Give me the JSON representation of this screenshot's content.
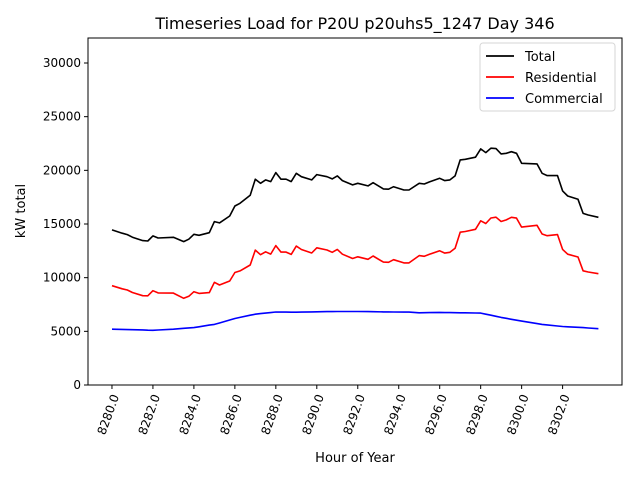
{
  "chart_data": {
    "type": "line",
    "title": "Timeseries Load for P20U p20uhs5_1247  Day 346",
    "xlabel": "Hour of Year",
    "ylabel": "kW total",
    "xlim": [
      8278.83,
      8304.9
    ],
    "ylim": [
      0,
      32330
    ],
    "xticks": [
      8280,
      8282,
      8284,
      8286,
      8288,
      8290,
      8292,
      8294,
      8296,
      8298,
      8300,
      8302
    ],
    "xtick_labels": [
      "8280.0",
      "8282.0",
      "8284.0",
      "8286.0",
      "8288.0",
      "8290.0",
      "8292.0",
      "8294.0",
      "8296.0",
      "8298.0",
      "8300.0",
      "8302.0"
    ],
    "yticks": [
      0,
      5000,
      10000,
      15000,
      20000,
      25000,
      30000
    ],
    "ytick_labels": [
      "0",
      "5000",
      "10000",
      "15000",
      "20000",
      "25000",
      "30000"
    ],
    "grid": false,
    "legend_position": "top-right",
    "x": [
      8280,
      8280.5,
      8280.75,
      8281,
      8281.5,
      8281.75,
      8282,
      8282.25,
      8283,
      8283.5,
      8283.75,
      8284,
      8284.25,
      8284.75,
      8285,
      8285.25,
      8285.75,
      8286,
      8286.25,
      8286.75,
      8287,
      8287.25,
      8287.5,
      8287.75,
      8288,
      8288.25,
      8288.5,
      8288.75,
      8289,
      8289.25,
      8289.75,
      8290,
      8290.5,
      8290.75,
      8291,
      8291.25,
      8291.75,
      8292,
      8292.5,
      8292.75,
      8293.25,
      8293.5,
      8293.75,
      8294.25,
      8294.5,
      8295,
      8295.25,
      8295.5,
      8296,
      8296.25,
      8296.5,
      8296.75,
      8297,
      8297.25,
      8297.75,
      8298,
      8298.25,
      8298.5,
      8298.75,
      8299,
      8299.25,
      8299.5,
      8299.75,
      8300,
      8300.75,
      8301,
      8301.25,
      8301.75,
      8302,
      8302.25,
      8302.75,
      8303,
      8303.25,
      8303.75
    ],
    "series": [
      {
        "name": "Total",
        "color": "#000000",
        "values": [
          14450,
          14140,
          14010,
          13770,
          13450,
          13420,
          13890,
          13700,
          13760,
          13360,
          13580,
          14040,
          13950,
          14190,
          15220,
          15100,
          15750,
          16680,
          16930,
          17680,
          19170,
          18790,
          19110,
          18950,
          19790,
          19170,
          19170,
          18950,
          19720,
          19410,
          19110,
          19600,
          19410,
          19200,
          19480,
          19040,
          18640,
          18790,
          18550,
          18850,
          18270,
          18240,
          18480,
          18170,
          18170,
          18790,
          18730,
          18920,
          19260,
          19040,
          19110,
          19480,
          20970,
          21030,
          21220,
          22000,
          21650,
          22060,
          22030,
          21530,
          21590,
          21740,
          21590,
          20660,
          20600,
          19720,
          19510,
          19510,
          18080,
          17610,
          17300,
          15990,
          15840,
          15620
        ]
      },
      {
        "name": "Residential",
        "color": "#ff0000",
        "values": [
          9250,
          8960,
          8850,
          8620,
          8320,
          8310,
          8790,
          8580,
          8560,
          8080,
          8260,
          8690,
          8530,
          8610,
          9570,
          9320,
          9690,
          10480,
          10630,
          11180,
          12570,
          12140,
          12410,
          12200,
          12990,
          12380,
          12380,
          12170,
          12940,
          12620,
          12300,
          12780,
          12575,
          12360,
          12630,
          12190,
          11790,
          11940,
          11715,
          12020,
          11455,
          11430,
          11675,
          11375,
          11380,
          12060,
          11990,
          12175,
          12500,
          12290,
          12365,
          12740,
          14240,
          14305,
          14510,
          15300,
          15050,
          15560,
          15630,
          15230,
          15380,
          15620,
          15550,
          14710,
          14875,
          14070,
          13910,
          14010,
          12630,
          12185,
          11925,
          10640,
          10525,
          10370
        ]
      },
      {
        "name": "Commercial",
        "color": "#0000ff",
        "values": [
          5200,
          5180,
          5160,
          5150,
          5130,
          5110,
          5100,
          5120,
          5200,
          5280,
          5320,
          5350,
          5420,
          5580,
          5650,
          5780,
          6060,
          6200,
          6300,
          6500,
          6600,
          6650,
          6700,
          6750,
          6800,
          6790,
          6790,
          6780,
          6780,
          6790,
          6810,
          6820,
          6835,
          6840,
          6850,
          6850,
          6850,
          6850,
          6835,
          6830,
          6815,
          6810,
          6805,
          6795,
          6790,
          6730,
          6740,
          6745,
          6760,
          6750,
          6745,
          6740,
          6730,
          6725,
          6710,
          6700,
          6600,
          6500,
          6400,
          6300,
          6210,
          6120,
          6040,
          5950,
          5725,
          5650,
          5600,
          5500,
          5450,
          5425,
          5375,
          5350,
          5315,
          5250
        ]
      }
    ]
  }
}
